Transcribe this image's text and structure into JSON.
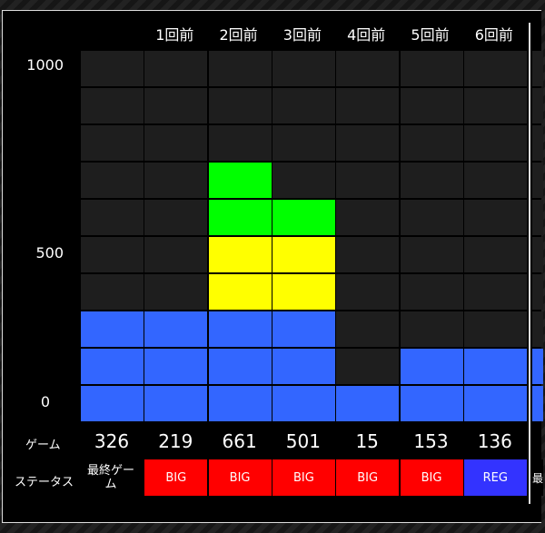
{
  "chart_data": {
    "type": "bar",
    "categories": [
      "",
      "1回前",
      "2回前",
      "3回前",
      "4回前",
      "5回前",
      "6回前",
      ""
    ],
    "values": [
      326,
      219,
      661,
      501,
      15,
      153,
      136,
      null
    ],
    "cells_filled": [
      3,
      3,
      7,
      6,
      1,
      2,
      2,
      2
    ],
    "y_ticks": [
      "1000",
      "500",
      "0"
    ],
    "ylim": [
      0,
      1000
    ],
    "grid": true,
    "band_colors": {
      "0-300": "#3366ff",
      "300-500": "#ffff00",
      "500-800": "#00ff00",
      "empty": "#1e1e1e"
    }
  },
  "table": {
    "game_label": "ゲーム",
    "status_label": "ステータス",
    "games": [
      "326",
      "219",
      "661",
      "501",
      "15",
      "153",
      "136"
    ],
    "statuses": [
      {
        "text": "最終ゲーム",
        "color": "#000000"
      },
      {
        "text": "BIG",
        "color": "#ff0000"
      },
      {
        "text": "BIG",
        "color": "#ff0000"
      },
      {
        "text": "BIG",
        "color": "#ff0000"
      },
      {
        "text": "BIG",
        "color": "#ff0000"
      },
      {
        "text": "BIG",
        "color": "#ff0000"
      },
      {
        "text": "REG",
        "color": "#3333ff"
      },
      {
        "text": "最",
        "color": "#000000"
      }
    ]
  }
}
